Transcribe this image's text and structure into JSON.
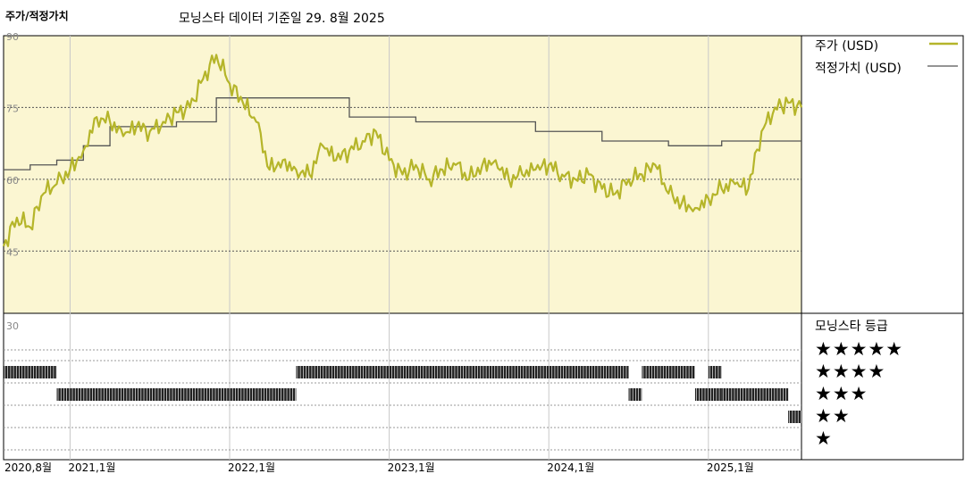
{
  "header": {
    "title": "주가/적정가치",
    "subtitle": "모닝스타 데이터 기준일 29. 8월 2025"
  },
  "legend": {
    "price_label": "주가 (USD)",
    "fair_label": "적정가치 (USD)",
    "price_color": "#b5b52a",
    "fair_color": "#555555",
    "rating_title": "모닝스타 등급"
  },
  "rating_rows": [
    "★★★★★",
    "★★★★",
    "★★★",
    "★★",
    "★"
  ],
  "chart_data": {
    "type": "line",
    "x_ticks": [
      "2020,8월",
      "2021,1월",
      "2022,1월",
      "2023,1월",
      "2024,1월",
      "2025,1월"
    ],
    "x_tick_dates": [
      "2020-08",
      "2021-01",
      "2022-01",
      "2023-01",
      "2024-01",
      "2025-01"
    ],
    "x_range": [
      "2020-08",
      "2025-08"
    ],
    "y_ticks": [
      90,
      75,
      60,
      45
    ],
    "ylim": [
      32,
      90
    ],
    "rating_axis_tick": 30,
    "series": [
      {
        "name": "주가 (USD)",
        "x": [
          "2020-08",
          "2020-09",
          "2020-10",
          "2020-11",
          "2020-12",
          "2021-01",
          "2021-02",
          "2021-03",
          "2021-04",
          "2021-05",
          "2021-06",
          "2021-07",
          "2021-08",
          "2021-09",
          "2021-10",
          "2021-11",
          "2021-12",
          "2022-01",
          "2022-02",
          "2022-03",
          "2022-04",
          "2022-05",
          "2022-06",
          "2022-07",
          "2022-08",
          "2022-09",
          "2022-10",
          "2022-11",
          "2022-12",
          "2023-01",
          "2023-02",
          "2023-03",
          "2023-04",
          "2023-05",
          "2023-06",
          "2023-07",
          "2023-08",
          "2023-09",
          "2023-10",
          "2023-11",
          "2023-12",
          "2024-01",
          "2024-02",
          "2024-03",
          "2024-04",
          "2024-05",
          "2024-06",
          "2024-07",
          "2024-08",
          "2024-09",
          "2024-10",
          "2024-11",
          "2024-12",
          "2025-01",
          "2025-02",
          "2025-03",
          "2025-04",
          "2025-05",
          "2025-06",
          "2025-07",
          "2025-08"
        ],
        "values": [
          46,
          52,
          50,
          57,
          59,
          62,
          66,
          73,
          72,
          69,
          71,
          70,
          72,
          74,
          75,
          81,
          86,
          80,
          76,
          72,
          62,
          64,
          62,
          61,
          67,
          64,
          66,
          68,
          70,
          64,
          61,
          63,
          60,
          62,
          63,
          60,
          63,
          64,
          60,
          61,
          62,
          63,
          61,
          60,
          61,
          58,
          57,
          60,
          61,
          63,
          57,
          55,
          54,
          56,
          58,
          59,
          58,
          70,
          75,
          76,
          75
        ]
      },
      {
        "name": "적정가치 (USD)",
        "x": [
          "2020-08",
          "2020-09",
          "2020-10",
          "2020-11",
          "2020-12",
          "2021-01",
          "2021-02",
          "2021-03",
          "2021-04",
          "2021-05",
          "2021-06",
          "2021-07",
          "2021-08",
          "2021-09",
          "2021-10",
          "2021-11",
          "2021-12",
          "2022-01",
          "2022-02",
          "2022-03",
          "2022-04",
          "2022-05",
          "2022-06",
          "2022-07",
          "2022-08",
          "2022-09",
          "2022-10",
          "2022-11",
          "2022-12",
          "2023-01",
          "2023-02",
          "2023-03",
          "2023-04",
          "2023-05",
          "2023-06",
          "2023-07",
          "2023-08",
          "2023-09",
          "2023-10",
          "2023-11",
          "2023-12",
          "2024-01",
          "2024-02",
          "2024-03",
          "2024-04",
          "2024-05",
          "2024-06",
          "2024-07",
          "2024-08",
          "2024-09",
          "2024-10",
          "2024-11",
          "2024-12",
          "2025-01",
          "2025-02",
          "2025-03",
          "2025-04",
          "2025-05",
          "2025-06",
          "2025-07",
          "2025-08"
        ],
        "values": [
          62,
          62,
          63,
          63,
          64,
          64,
          67,
          67,
          71,
          71,
          71,
          71,
          71,
          72,
          72,
          72,
          77,
          77,
          77,
          77,
          77,
          77,
          77,
          77,
          77,
          77,
          73,
          73,
          73,
          73,
          73,
          72,
          72,
          72,
          72,
          72,
          72,
          72,
          72,
          72,
          70,
          70,
          70,
          70,
          70,
          68,
          68,
          68,
          68,
          68,
          67,
          67,
          67,
          67,
          68,
          68,
          68,
          68,
          68,
          68,
          68
        ]
      }
    ],
    "ratings": [
      {
        "stars": 4,
        "from": "2020-08",
        "to": "2020-12"
      },
      {
        "stars": 3,
        "from": "2020-12",
        "to": "2022-06"
      },
      {
        "stars": 4,
        "from": "2022-06",
        "to": "2024-07"
      },
      {
        "stars": 3,
        "from": "2024-07",
        "to": "2024-08"
      },
      {
        "stars": 4,
        "from": "2024-08",
        "to": "2024-12"
      },
      {
        "stars": 4,
        "from": "2025-01",
        "to": "2025-02"
      },
      {
        "stars": 3,
        "from": "2024-12",
        "to": "2025-02"
      },
      {
        "stars": 3,
        "from": "2025-02",
        "to": "2025-07"
      },
      {
        "stars": 2,
        "from": "2025-07",
        "to": "2025-08"
      }
    ]
  }
}
